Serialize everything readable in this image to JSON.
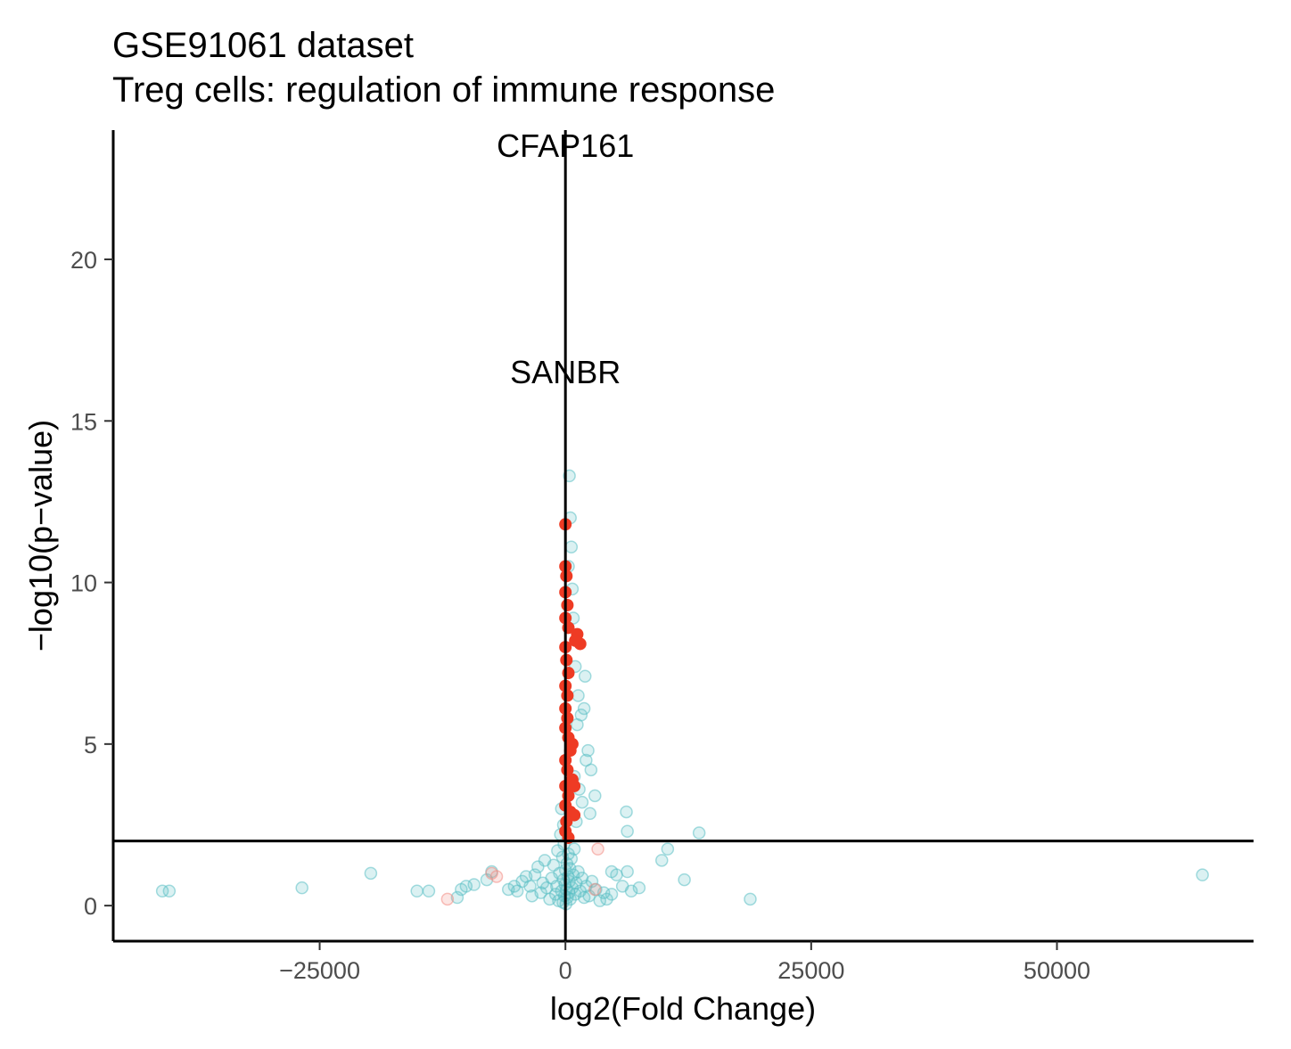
{
  "chart_data": {
    "type": "scatter",
    "title_line1": "GSE91061 dataset",
    "title_line2": "Treg cells: regulation of immune response",
    "xlabel": "log2(Fold Change)",
    "ylabel": "−log10(p−value)",
    "xlim": [
      -46000,
      70000
    ],
    "ylim": [
      -1.1,
      24.0
    ],
    "x_ticks": [
      {
        "value": -25000,
        "label": "−25000"
      },
      {
        "value": 0,
        "label": "0"
      },
      {
        "value": 25000,
        "label": "25000"
      },
      {
        "value": 50000,
        "label": "50000"
      }
    ],
    "y_ticks": [
      {
        "value": 0,
        "label": "0"
      },
      {
        "value": 5,
        "label": "5"
      },
      {
        "value": 10,
        "label": "10"
      },
      {
        "value": 15,
        "label": "15"
      },
      {
        "value": 20,
        "label": "20"
      }
    ],
    "vline_x": 0,
    "hline_y": 2,
    "grid": false,
    "legend": "none",
    "colors": {
      "highlight": "#EE3B24",
      "background": "#5BC0C4",
      "background_red": "#F28C84",
      "axis": "#000000"
    },
    "annotations": [
      {
        "label": "CFAP161",
        "x": 0,
        "y": 23.5
      },
      {
        "label": "SANBR",
        "x": 0,
        "y": 16.5
      }
    ],
    "series": [
      {
        "key": "background",
        "points": [
          [
            -41000,
            0.45
          ],
          [
            -40300,
            0.45
          ],
          [
            -26800,
            0.55
          ],
          [
            -19800,
            1.0
          ],
          [
            -15100,
            0.45
          ],
          [
            -13900,
            0.45
          ],
          [
            -11000,
            0.25
          ],
          [
            -10600,
            0.5
          ],
          [
            -10100,
            0.6
          ],
          [
            -9300,
            0.65
          ],
          [
            -8000,
            0.8
          ],
          [
            -7500,
            1.05
          ],
          [
            -5800,
            0.5
          ],
          [
            -5200,
            0.6
          ],
          [
            -4900,
            0.45
          ],
          [
            -4400,
            0.75
          ],
          [
            -4000,
            0.9
          ],
          [
            -3600,
            0.6
          ],
          [
            -3400,
            0.3
          ],
          [
            -3100,
            0.95
          ],
          [
            -2800,
            1.2
          ],
          [
            -2500,
            0.4
          ],
          [
            -2300,
            0.7
          ],
          [
            -2100,
            1.4
          ],
          [
            -1900,
            0.55
          ],
          [
            -1600,
            0.2
          ],
          [
            -1400,
            0.85
          ],
          [
            -1200,
            1.25
          ],
          [
            -1000,
            0.35
          ],
          [
            -900,
            0.6
          ],
          [
            -800,
            1.7
          ],
          [
            -700,
            0.15
          ],
          [
            -600,
            1.0
          ],
          [
            -500,
            2.2
          ],
          [
            -400,
            0.45
          ],
          [
            -300,
            1.5
          ],
          [
            -250,
            0.1
          ],
          [
            -200,
            0.8
          ],
          [
            -150,
            1.9
          ],
          [
            -100,
            0.3
          ],
          [
            -50,
            0.65
          ],
          [
            0,
            1.1
          ],
          [
            50,
            0.05
          ],
          [
            100,
            0.5
          ],
          [
            150,
            1.3
          ],
          [
            200,
            0.25
          ],
          [
            250,
            0.9
          ],
          [
            300,
            1.6
          ],
          [
            350,
            0.4
          ],
          [
            400,
            0.75
          ],
          [
            450,
            1.15
          ],
          [
            500,
            0.2
          ],
          [
            600,
            1.45
          ],
          [
            700,
            0.55
          ],
          [
            800,
            0.95
          ],
          [
            900,
            1.75
          ],
          [
            1000,
            0.35
          ],
          [
            1100,
            0.7
          ],
          [
            1300,
            1.05
          ],
          [
            1500,
            0.45
          ],
          [
            1700,
            0.85
          ],
          [
            1900,
            0.25
          ],
          [
            2100,
            0.6
          ],
          [
            2400,
            0.3
          ],
          [
            2700,
            0.75
          ],
          [
            3100,
            0.5
          ],
          [
            3500,
            0.15
          ],
          [
            3900,
            0.4
          ],
          [
            4200,
            0.2
          ],
          [
            4700,
            0.35
          ],
          [
            5200,
            0.95
          ],
          [
            5800,
            0.6
          ],
          [
            6300,
            1.05
          ],
          [
            6700,
            0.45
          ],
          [
            7500,
            0.55
          ],
          [
            4700,
            1.05
          ],
          [
            9800,
            1.4
          ],
          [
            10400,
            1.75
          ],
          [
            12100,
            0.8
          ],
          [
            13600,
            2.25
          ],
          [
            18800,
            0.2
          ],
          [
            64800,
            0.95
          ],
          [
            6200,
            2.9
          ],
          [
            6300,
            2.3
          ],
          [
            2500,
            2.85
          ],
          [
            3000,
            3.4
          ],
          [
            2600,
            4.2
          ],
          [
            2300,
            4.8
          ],
          [
            2100,
            4.5
          ],
          [
            1900,
            6.1
          ],
          [
            1600,
            5.9
          ],
          [
            1300,
            6.5
          ],
          [
            1200,
            5.6
          ],
          [
            2000,
            7.1
          ],
          [
            1000,
            7.4
          ],
          [
            800,
            8.9
          ],
          [
            700,
            9.8
          ],
          [
            600,
            11.1
          ],
          [
            500,
            12.0
          ],
          [
            400,
            13.3
          ],
          [
            300,
            10.5
          ],
          [
            1400,
            3.6
          ],
          [
            1700,
            3.2
          ],
          [
            1100,
            2.6
          ],
          [
            900,
            4.0
          ],
          [
            -200,
            2.5
          ],
          [
            -400,
            3.0
          ],
          [
            200,
            3.7
          ]
        ]
      },
      {
        "key": "background_red",
        "points": [
          [
            -12000,
            0.2
          ],
          [
            -7500,
            1.0
          ],
          [
            -7000,
            0.9
          ],
          [
            3300,
            1.75
          ],
          [
            3000,
            0.5
          ]
        ]
      },
      {
        "key": "highlight",
        "points": [
          [
            0,
            11.8
          ],
          [
            0,
            10.5
          ],
          [
            100,
            10.2
          ],
          [
            0,
            9.7
          ],
          [
            200,
            9.3
          ],
          [
            0,
            8.9
          ],
          [
            300,
            8.6
          ],
          [
            1200,
            8.4
          ],
          [
            1500,
            8.1
          ],
          [
            1000,
            8.2
          ],
          [
            0,
            8.0
          ],
          [
            100,
            7.6
          ],
          [
            300,
            7.2
          ],
          [
            0,
            6.8
          ],
          [
            200,
            6.5
          ],
          [
            0,
            6.1
          ],
          [
            200,
            5.8
          ],
          [
            0,
            5.5
          ],
          [
            300,
            5.2
          ],
          [
            700,
            5.0
          ],
          [
            500,
            4.8
          ],
          [
            0,
            4.5
          ],
          [
            200,
            4.2
          ],
          [
            700,
            3.9
          ],
          [
            0,
            3.7
          ],
          [
            900,
            3.7
          ],
          [
            300,
            3.4
          ],
          [
            0,
            3.1
          ],
          [
            500,
            2.9
          ],
          [
            900,
            2.8
          ],
          [
            100,
            2.6
          ],
          [
            0,
            2.3
          ],
          [
            300,
            2.1
          ]
        ]
      }
    ]
  }
}
